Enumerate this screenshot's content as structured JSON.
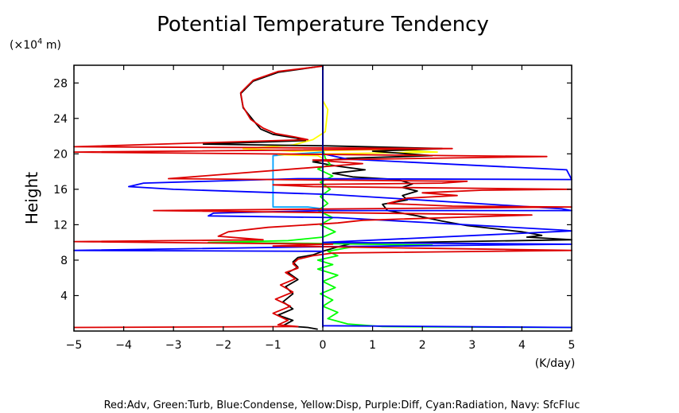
{
  "chart_data": {
    "type": "line",
    "title": "Potential Temperature Tendency",
    "ylabel": "Height",
    "yunit_prefix": "(×10",
    "yunit_exp": "4",
    "yunit_suffix": " m)",
    "xunit": "(K/day)",
    "xlim": [
      -5,
      5
    ],
    "ylim": [
      0,
      30
    ],
    "xticks": [
      -5,
      -4,
      -3,
      -2,
      -1,
      0,
      1,
      2,
      3,
      4,
      5
    ],
    "xtick_labels": [
      "−5",
      "−4",
      "−3",
      "−2",
      "−1",
      "0",
      "1",
      "2",
      "3",
      "4",
      "5"
    ],
    "yticks": [
      4,
      8,
      12,
      16,
      20,
      24,
      28
    ],
    "ytick_labels": [
      "4",
      "8",
      "12",
      "16",
      "20",
      "24",
      "28"
    ],
    "grid": false,
    "legend_text": "Red:Adv, Green:Turb, Blue:Condense, Yellow:Disp, Purple:Diff, Cyan:Radiation, Navy: SfcFluc",
    "series": [
      {
        "color": "#00a0ff",
        "points": [
          [
            0,
            30
          ],
          [
            0,
            29
          ],
          [
            0,
            28
          ],
          [
            0,
            27
          ],
          [
            0,
            26
          ],
          [
            0,
            25
          ],
          [
            0,
            24
          ],
          [
            0,
            23
          ],
          [
            0,
            22
          ],
          [
            0,
            21
          ],
          [
            0,
            20.2
          ],
          [
            -0.5,
            20
          ],
          [
            -1,
            19.8
          ],
          [
            -1,
            18
          ],
          [
            -1,
            16
          ],
          [
            -1,
            14
          ],
          [
            -0.3,
            14
          ],
          [
            0,
            13.8
          ],
          [
            0,
            12
          ],
          [
            0,
            10
          ],
          [
            0,
            8
          ],
          [
            0,
            6
          ],
          [
            0,
            4
          ],
          [
            0,
            2
          ],
          [
            0,
            0.5
          ]
        ]
      },
      {
        "color": "#ffff00",
        "points": [
          [
            0,
            30
          ],
          [
            0,
            28
          ],
          [
            0,
            26
          ],
          [
            0.1,
            25
          ],
          [
            0.05,
            22.5
          ],
          [
            -0.2,
            21.6
          ],
          [
            -0.6,
            21
          ],
          [
            -1.6,
            20.6
          ],
          [
            -0.6,
            20.3
          ],
          [
            1.2,
            20.5
          ],
          [
            2.3,
            20.2
          ],
          [
            -0.9,
            19.9
          ],
          [
            -0.1,
            19.8
          ],
          [
            0,
            19.5
          ],
          [
            0,
            16
          ],
          [
            0,
            10
          ],
          [
            0,
            0.5
          ]
        ]
      },
      {
        "color": "#000000",
        "points": [
          [
            -0.15,
            29.8
          ],
          [
            -0.9,
            29.2
          ],
          [
            -1.4,
            28.2
          ],
          [
            -1.65,
            26.8
          ],
          [
            -1.6,
            25.2
          ],
          [
            -1.4,
            23.8
          ],
          [
            -1.25,
            22.8
          ],
          [
            -1.0,
            22.2
          ],
          [
            -0.55,
            21.8
          ],
          [
            -0.35,
            21.5
          ],
          [
            -2.4,
            21.1
          ],
          [
            0.1,
            20.9
          ],
          [
            2.4,
            20.6
          ],
          [
            1.0,
            20.3
          ],
          [
            2.2,
            19.8
          ],
          [
            0.5,
            19.5
          ],
          [
            -0.2,
            19.1
          ],
          [
            0.3,
            18.6
          ],
          [
            0.85,
            18.2
          ],
          [
            0.2,
            17.8
          ],
          [
            0.6,
            17.4
          ],
          [
            1.5,
            17.1
          ],
          [
            1.8,
            16.6
          ],
          [
            1.6,
            16.2
          ],
          [
            1.9,
            15.8
          ],
          [
            1.6,
            15.3
          ],
          [
            1.7,
            14.8
          ],
          [
            1.2,
            14.3
          ],
          [
            1.3,
            13.6
          ],
          [
            1.9,
            13.0
          ],
          [
            2.4,
            12.4
          ],
          [
            2.9,
            11.9
          ],
          [
            4.0,
            11.2
          ],
          [
            4.4,
            10.8
          ],
          [
            4.1,
            10.6
          ],
          [
            5,
            10.3
          ],
          [
            0.6,
            9.9
          ],
          [
            0.3,
            9.5
          ],
          [
            0.0,
            9.0
          ],
          [
            -0.2,
            8.6
          ],
          [
            -0.5,
            8.3
          ],
          [
            -0.6,
            7.8
          ],
          [
            -0.5,
            7.2
          ],
          [
            -0.7,
            6.6
          ],
          [
            -0.5,
            5.8
          ],
          [
            -0.75,
            5.0
          ],
          [
            -0.6,
            4.2
          ],
          [
            -0.8,
            3.3
          ],
          [
            -0.6,
            2.5
          ],
          [
            -0.9,
            1.8
          ],
          [
            -0.6,
            1.2
          ],
          [
            -0.8,
            0.6
          ],
          [
            -0.3,
            0.4
          ],
          [
            -0.1,
            0.2
          ]
        ]
      },
      {
        "color": "#00ff00",
        "points": [
          [
            0,
            20.6
          ],
          [
            0.05,
            19.5
          ],
          [
            0.15,
            18.8
          ],
          [
            -0.1,
            18.3
          ],
          [
            0.2,
            17.5
          ],
          [
            -0.05,
            16.8
          ],
          [
            0.15,
            16.0
          ],
          [
            -0.05,
            15.2
          ],
          [
            0.1,
            14.4
          ],
          [
            -0.1,
            13.6
          ],
          [
            0.2,
            12.8
          ],
          [
            -0.05,
            12.0
          ],
          [
            0.25,
            11.2
          ],
          [
            0.0,
            10.6
          ],
          [
            -0.7,
            10.2
          ],
          [
            -2.3,
            10.0
          ],
          [
            -0.3,
            9.9
          ],
          [
            2.2,
            9.7
          ],
          [
            0.6,
            9.5
          ],
          [
            0.1,
            9.0
          ],
          [
            0.3,
            8.5
          ],
          [
            -0.1,
            8.0
          ],
          [
            0.2,
            7.5
          ],
          [
            -0.1,
            7.0
          ],
          [
            0.3,
            6.3
          ],
          [
            0.0,
            5.6
          ],
          [
            0.25,
            4.9
          ],
          [
            -0.05,
            4.2
          ],
          [
            0.2,
            3.5
          ],
          [
            0.0,
            2.8
          ],
          [
            0.3,
            2.1
          ],
          [
            0.1,
            1.4
          ],
          [
            0.5,
            0.8
          ],
          [
            1.2,
            0.5
          ],
          [
            3.0,
            0.45
          ],
          [
            5,
            0.4
          ]
        ]
      },
      {
        "color": "#0000ff",
        "points": [
          [
            0,
            30
          ],
          [
            0,
            20.0
          ],
          [
            0.5,
            19.4
          ],
          [
            4.9,
            18.2
          ],
          [
            5,
            17.1
          ],
          [
            -0.5,
            17.2
          ],
          [
            -3.6,
            16.7
          ],
          [
            -3.9,
            16.3
          ],
          [
            -3.0,
            16.0
          ],
          [
            0.2,
            15.4
          ],
          [
            4.8,
            13.8
          ],
          [
            5,
            13.6
          ],
          [
            0,
            13.6
          ],
          [
            -2.2,
            13.3
          ],
          [
            -2.3,
            13.0
          ],
          [
            0.3,
            12.8
          ],
          [
            4.8,
            11.4
          ],
          [
            5,
            11.3
          ],
          [
            0,
            10.0
          ],
          [
            5,
            9.8
          ],
          [
            -0.2,
            9.5
          ],
          [
            -5,
            9.1
          ],
          [
            0,
            9.0
          ],
          [
            0,
            8.5
          ],
          [
            0,
            6
          ],
          [
            0,
            3
          ],
          [
            0,
            0.6
          ],
          [
            5,
            0.4
          ]
        ]
      },
      {
        "color": "#dd0000",
        "points": [
          [
            0,
            29.9
          ],
          [
            -0.9,
            29.3
          ],
          [
            -1.4,
            28.3
          ],
          [
            -1.65,
            26.9
          ],
          [
            -1.6,
            25.3
          ],
          [
            -1.45,
            23.9
          ],
          [
            -1.2,
            22.9
          ],
          [
            -0.95,
            22.3
          ],
          [
            -0.55,
            21.9
          ],
          [
            -0.3,
            21.6
          ],
          [
            -5,
            20.8
          ],
          [
            2.6,
            20.6
          ],
          [
            -5,
            20.2
          ],
          [
            4.5,
            19.7
          ],
          [
            -0.2,
            19.3
          ],
          [
            0.8,
            18.9
          ],
          [
            -3.1,
            17.2
          ],
          [
            2.9,
            16.9
          ],
          [
            2.4,
            16.7
          ],
          [
            -1,
            16.5
          ],
          [
            -0.2,
            16.3
          ],
          [
            5,
            16.0
          ],
          [
            3.2,
            15.9
          ],
          [
            2.0,
            15.6
          ],
          [
            2.7,
            15.3
          ],
          [
            1.7,
            15.0
          ],
          [
            1.3,
            14.4
          ],
          [
            2.6,
            14.1
          ],
          [
            5,
            14.0
          ],
          [
            0.6,
            13.8
          ],
          [
            -3.4,
            13.6
          ],
          [
            4.2,
            13.1
          ],
          [
            0.8,
            12.5
          ],
          [
            0.3,
            12.2
          ],
          [
            -1.1,
            11.7
          ],
          [
            -1.9,
            11.2
          ],
          [
            -2.1,
            10.7
          ],
          [
            -1.2,
            10.3
          ],
          [
            -5,
            10.1
          ],
          [
            0.2,
            9.8
          ],
          [
            -1,
            9.6
          ],
          [
            5,
            9.1
          ],
          [
            0.2,
            8.8
          ],
          [
            -0.2,
            8.5
          ],
          [
            -0.5,
            8.1
          ],
          [
            -0.6,
            7.6
          ],
          [
            -0.5,
            7.1
          ],
          [
            -0.75,
            6.6
          ],
          [
            -0.55,
            5.9
          ],
          [
            -0.85,
            5.2
          ],
          [
            -0.6,
            4.4
          ],
          [
            -0.95,
            3.6
          ],
          [
            -0.65,
            2.8
          ],
          [
            -1.0,
            2.0
          ],
          [
            -0.7,
            1.2
          ],
          [
            -0.9,
            0.7
          ],
          [
            -0.5,
            0.5
          ],
          [
            -5,
            0.4
          ]
        ]
      },
      {
        "color": "#000080",
        "points": [
          [
            0,
            30
          ],
          [
            0,
            0.4
          ]
        ]
      }
    ]
  }
}
